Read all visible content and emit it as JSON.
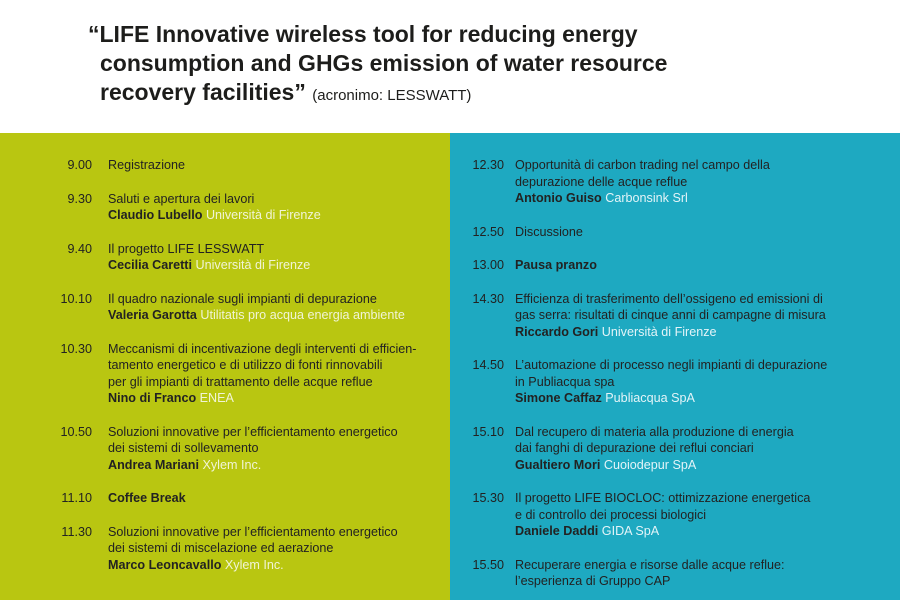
{
  "header": {
    "title_lines": [
      "“LIFE Innovative wireless tool for reducing energy",
      "consumption and GHGs emission of water resource",
      "recovery facilities”"
    ],
    "acronym": "(acronimo: LESSWATT)"
  },
  "colors": {
    "left_bg": "#b9c611",
    "right_bg": "#1ea9c1"
  },
  "left": [
    {
      "time": "9.00",
      "text": "Registrazione"
    },
    {
      "time": "9.30",
      "text": "Saluti e apertura dei lavori",
      "speaker": "Claudio Lubello",
      "org": "Università di Firenze"
    },
    {
      "time": "9.40",
      "text": "Il progetto LIFE LESSWATT",
      "speaker": "Cecilia Caretti",
      "org": "Università di Firenze"
    },
    {
      "time": "10.10",
      "text": "Il quadro nazionale sugli impianti di depurazione",
      "speaker": "Valeria Garotta",
      "org": "Utilitatis pro acqua energia ambiente"
    },
    {
      "time": "10.30",
      "text_lines": [
        "Meccanismi di incentivazione degli interventi di efficien-",
        "tamento energetico e di utilizzo di fonti rinnovabili",
        "per gli impianti di trattamento delle acque reflue"
      ],
      "speaker": "Nino di Franco",
      "org": "ENEA"
    },
    {
      "time": "10.50",
      "text_lines": [
        "Soluzioni innovative per l’efficientamento energetico",
        "dei sistemi di sollevamento"
      ],
      "speaker": "Andrea Mariani",
      "org": "Xylem Inc."
    },
    {
      "time": "11.10",
      "text": "Coffee Break"
    },
    {
      "time": "11.30",
      "text_lines": [
        "Soluzioni innovative per l’efficientamento energetico",
        "dei sistemi di miscelazione ed aerazione"
      ],
      "speaker": "Marco Leoncavallo",
      "org": "Xylem Inc."
    }
  ],
  "right": [
    {
      "time": "12.30",
      "text_lines": [
        "Opportunità di carbon trading nel campo della",
        "depurazione delle acque reflue"
      ],
      "speaker": "Antonio Guiso",
      "org": "Carbonsink Srl"
    },
    {
      "time": "12.50",
      "text": "Discussione"
    },
    {
      "time": "13.00",
      "text": "Pausa pranzo"
    },
    {
      "time": "14.30",
      "text_lines": [
        "Efficienza di trasferimento dell’ossigeno ed emissioni di",
        "gas serra: risultati di cinque anni di campagne di misura"
      ],
      "speaker": "Riccardo Gori",
      "org": "Università di Firenze"
    },
    {
      "time": "14.50",
      "text_lines": [
        "L’automazione di processo negli impianti di depurazione",
        "in Publiacqua spa"
      ],
      "speaker": "Simone Caffaz",
      "org": "Publiacqua SpA"
    },
    {
      "time": "15.10",
      "text_lines": [
        "Dal recupero di materia alla produzione di energia",
        "dai fanghi di depurazione dei reflui conciari"
      ],
      "speaker": "Gualtiero Mori",
      "org": "Cuoiodepur SpA"
    },
    {
      "time": "15.30",
      "text_lines": [
        "Il progetto LIFE BIOCLOC: ottimizzazione energetica",
        "e di controllo dei processi biologici"
      ],
      "speaker": "Daniele Daddi",
      "org": "GIDA SpA"
    },
    {
      "time": "15.50",
      "text_lines": [
        "Recuperare energia e risorse dalle acque reflue:",
        "l’esperienza di Gruppo CAP"
      ]
    }
  ]
}
